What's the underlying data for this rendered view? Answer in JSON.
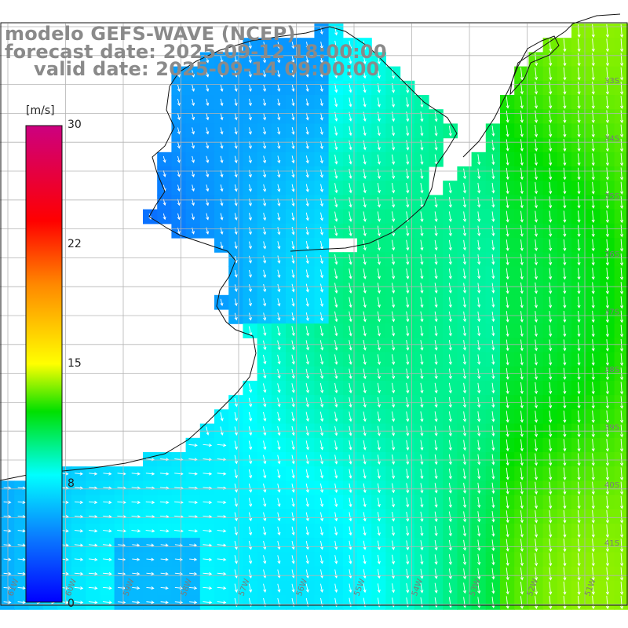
{
  "title": {
    "line1": "modelo GEFS-WAVE (NCEP)",
    "line2": "forecast date: 2025-09-12 18:00:00",
    "line3": "valid date: 2025-09-14 09:00:00"
  },
  "colorbar": {
    "unit": "[m/s]",
    "ticks": [
      "30",
      "22",
      "15",
      "8",
      "0"
    ],
    "tick_values": [
      30,
      22,
      15,
      8,
      0
    ],
    "range": [
      0,
      30
    ],
    "stops": [
      {
        "v": 0,
        "color": "#0000ff"
      },
      {
        "v": 4,
        "color": "#0a78ff"
      },
      {
        "v": 8,
        "color": "#00ffff"
      },
      {
        "v": 12,
        "color": "#00e000"
      },
      {
        "v": 15,
        "color": "#ffff00"
      },
      {
        "v": 20,
        "color": "#ff8800"
      },
      {
        "v": 24,
        "color": "#ff0000"
      },
      {
        "v": 30,
        "color": "#cc0080"
      }
    ]
  },
  "map": {
    "variable": "wind speed",
    "lat_labels": [
      "33S",
      "34S",
      "35S",
      "36S",
      "37S",
      "38S",
      "39S",
      "40S",
      "41S"
    ],
    "lon_labels": [
      "61W",
      "60W",
      "59W",
      "58W",
      "57W",
      "56W",
      "55W",
      "54W",
      "53W",
      "52W",
      "51W"
    ],
    "wind_direction": "from north-east, blowing toward south / south-west",
    "land_color": "#ffffff",
    "grid_color": "#b4b4b4",
    "arrow_color": "#ffffff",
    "speed_range_shown_mps": [
      2,
      12
    ]
  }
}
